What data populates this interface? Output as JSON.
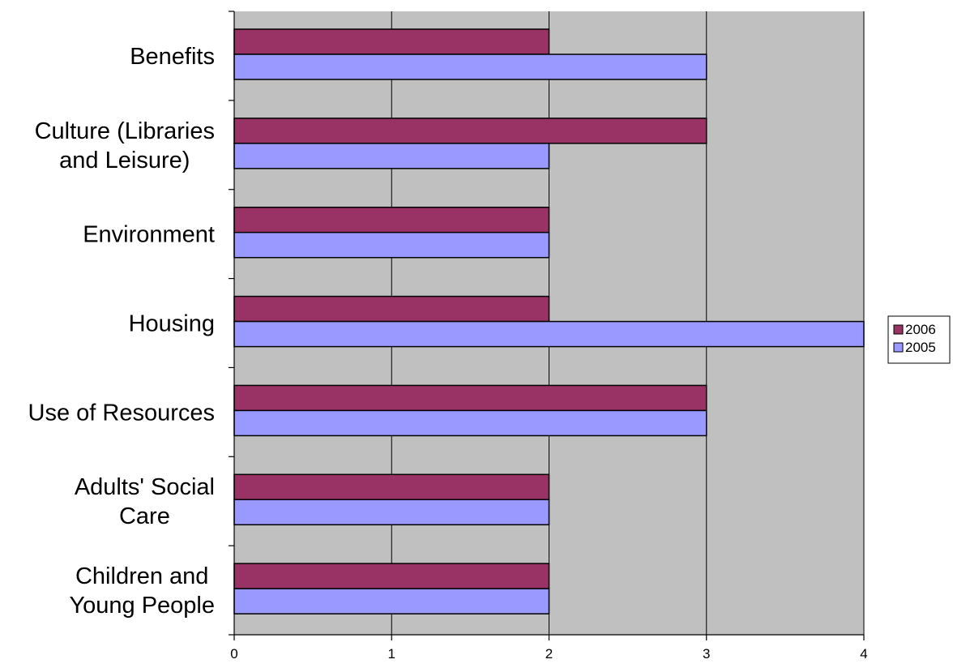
{
  "chart_data": {
    "type": "bar",
    "orientation": "horizontal",
    "title": "",
    "xlabel": "",
    "ylabel": "",
    "categories": [
      [
        "Benefits"
      ],
      [
        "Culture (Libraries",
        "and Leisure)"
      ],
      [
        "Environment"
      ],
      [
        "Housing"
      ],
      [
        "Use of Resources"
      ],
      [
        "Adults' Social",
        "Care"
      ],
      [
        "Children and",
        "Young People"
      ]
    ],
    "series": [
      {
        "name": "2006",
        "color": "#993366",
        "values": [
          2,
          3,
          2,
          2,
          3,
          2,
          2
        ]
      },
      {
        "name": "2005",
        "color": "#9999FF",
        "values": [
          3,
          2,
          2,
          4,
          3,
          2,
          2
        ]
      }
    ],
    "xlim": [
      0,
      4
    ],
    "xticks": [
      0,
      1,
      2,
      3,
      4
    ],
    "grid": true,
    "grid_axis": "x",
    "plot_background": "#C0C0C0",
    "legend_position": "right"
  }
}
